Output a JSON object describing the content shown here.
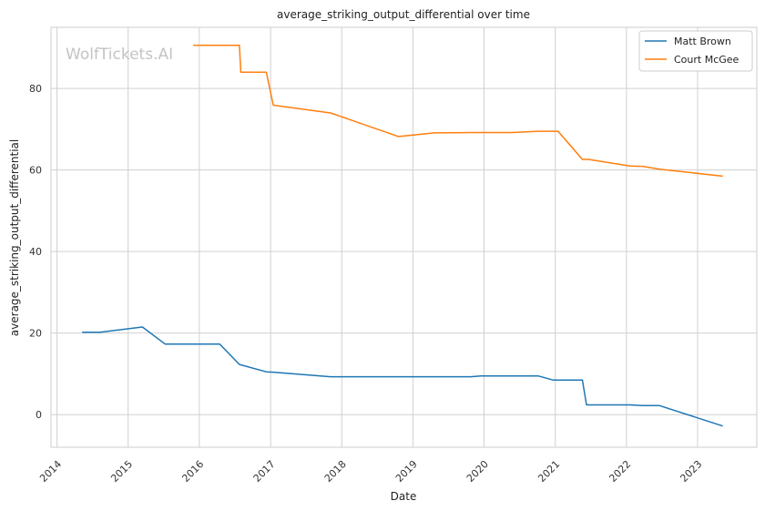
{
  "chart_data": {
    "type": "line",
    "title": "average_striking_output_differential over time",
    "xlabel": "Date",
    "ylabel": "average_striking_output_differential",
    "watermark": "WolfTickets.AI",
    "x_ticks": [
      "2014",
      "2015",
      "2016",
      "2017",
      "2018",
      "2019",
      "2020",
      "2021",
      "2022",
      "2023"
    ],
    "y_ticks": [
      0,
      20,
      40,
      60,
      80
    ],
    "xlim": [
      "2013-12-01",
      "2023-11-01"
    ],
    "ylim": [
      -8,
      95
    ],
    "grid": true,
    "legend_position": "top-right",
    "series": [
      {
        "name": "Matt Brown",
        "color": "#1f77b4",
        "points": [
          [
            "2014-05-10",
            20.2
          ],
          [
            "2014-08-10",
            20.2
          ],
          [
            "2015-03-15",
            21.5
          ],
          [
            "2015-07-10",
            17.3
          ],
          [
            "2016-04-15",
            17.3
          ],
          [
            "2016-07-25",
            12.3
          ],
          [
            "2016-12-10",
            10.5
          ],
          [
            "2017-01-15",
            10.4
          ],
          [
            "2017-11-05",
            9.3
          ],
          [
            "2019-10-25",
            9.3
          ],
          [
            "2019-12-15",
            9.5
          ],
          [
            "2020-10-05",
            9.5
          ],
          [
            "2020-12-20",
            8.5
          ],
          [
            "2021-05-20",
            8.5
          ],
          [
            "2021-06-10",
            2.4
          ],
          [
            "2022-01-20",
            2.4
          ],
          [
            "2022-03-25",
            2.2
          ],
          [
            "2022-06-20",
            2.2
          ],
          [
            "2023-05-10",
            -2.8
          ]
        ]
      },
      {
        "name": "Court McGee",
        "color": "#ff7f0e",
        "points": [
          [
            "2015-12-01",
            90.6
          ],
          [
            "2016-07-25",
            90.6
          ],
          [
            "2016-08-01",
            84.0
          ],
          [
            "2016-12-10",
            84.0
          ],
          [
            "2017-01-15",
            75.9
          ],
          [
            "2017-11-05",
            74.0
          ],
          [
            "2018-10-20",
            68.2
          ],
          [
            "2019-04-20",
            69.1
          ],
          [
            "2019-10-25",
            69.2
          ],
          [
            "2020-05-25",
            69.2
          ],
          [
            "2020-10-05",
            69.5
          ],
          [
            "2021-01-15",
            69.5
          ],
          [
            "2021-05-20",
            62.6
          ],
          [
            "2021-06-20",
            62.6
          ],
          [
            "2022-01-20",
            61.0
          ],
          [
            "2022-03-25",
            60.9
          ],
          [
            "2022-06-20",
            60.2
          ],
          [
            "2023-05-10",
            58.5
          ]
        ]
      }
    ]
  }
}
